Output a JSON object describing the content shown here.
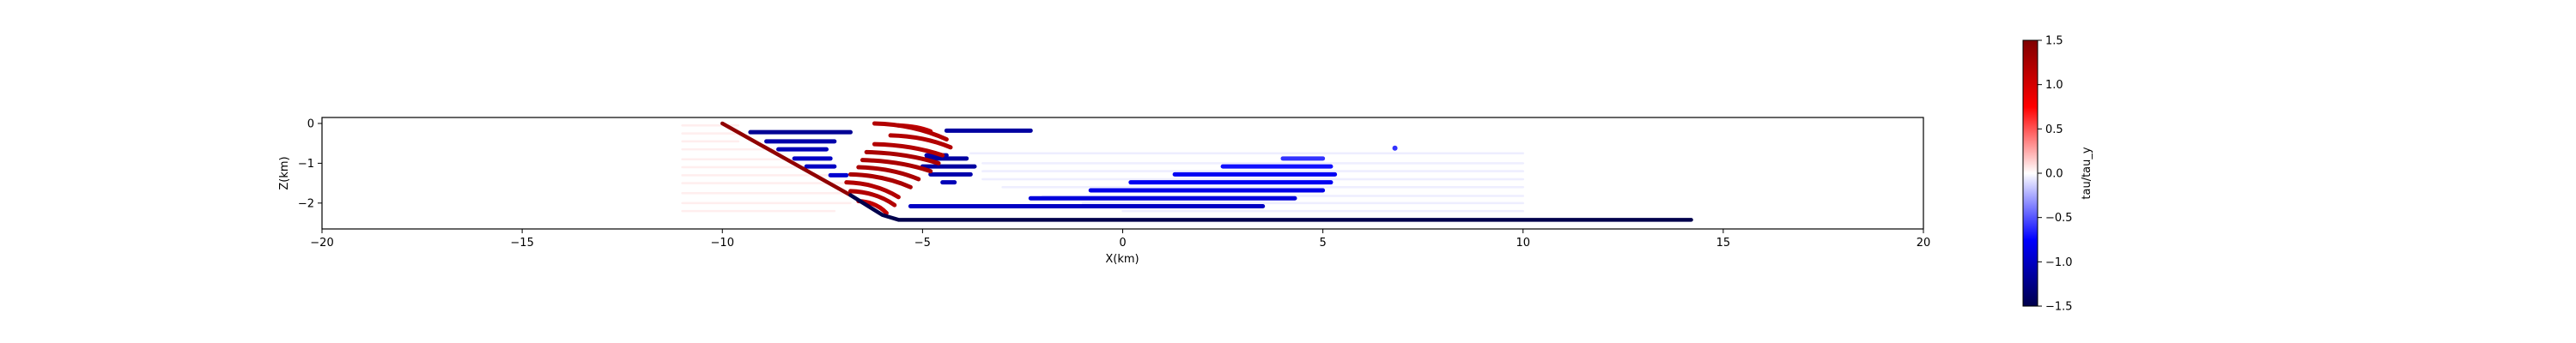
{
  "chart_data": {
    "type": "scatter",
    "title": "",
    "xlabel": "X(km)",
    "ylabel": "Z(km)",
    "xlim": [
      -20,
      20
    ],
    "ylim": [
      -2.65,
      0.15
    ],
    "xticks": [
      -20,
      -15,
      -10,
      -5,
      0,
      5,
      10,
      15,
      20
    ],
    "xtick_labels": [
      "−20",
      "−15",
      "−10",
      "−5",
      "0",
      "5",
      "10",
      "15",
      "20"
    ],
    "yticks": [
      0,
      -1,
      -2
    ],
    "ytick_labels": [
      "0",
      "−1",
      "−2"
    ],
    "grid": false,
    "colormap": "seismic",
    "colorbar": {
      "label": "tau/tau_y",
      "range": [
        -1.5,
        1.5
      ],
      "ticks": [
        1.5,
        1.0,
        0.5,
        0.0,
        -0.5,
        -1.0,
        -1.5
      ],
      "tick_labels": [
        "1.5",
        "1.0",
        "0.5",
        "0.0",
        "−0.5",
        "−1.0",
        "−1.5"
      ],
      "stops": [
        "#00004c",
        "#0000ff",
        "#ffffff",
        "#ff0000",
        "#7f0000"
      ]
    },
    "fault": {
      "points": [
        [
          -10.0,
          0.0
        ],
        [
          -6.8,
          -1.8
        ],
        [
          -6.0,
          -2.3
        ],
        [
          -5.6,
          -2.42
        ],
        [
          14.2,
          -2.42
        ]
      ],
      "value": -1.5,
      "ramp_value": 1.4
    },
    "faint_segments": [
      {
        "x": [
          -11.0,
          -9.6
        ],
        "z": -0.05,
        "value": 0.05
      },
      {
        "x": [
          -11.0,
          -9.6
        ],
        "z": -0.25,
        "value": 0.05
      },
      {
        "x": [
          -11.0,
          -9.6
        ],
        "z": -0.45,
        "value": 0.05
      },
      {
        "x": [
          -11.0,
          -8.5
        ],
        "z": -0.65,
        "value": 0.05
      },
      {
        "x": [
          -11.0,
          -8.0
        ],
        "z": -0.9,
        "value": 0.05
      },
      {
        "x": [
          -11.0,
          -7.5
        ],
        "z": -1.1,
        "value": 0.05
      },
      {
        "x": [
          -11.0,
          -7.0
        ],
        "z": -1.3,
        "value": 0.05
      },
      {
        "x": [
          -11.0,
          -6.5
        ],
        "z": -1.5,
        "value": 0.05
      },
      {
        "x": [
          -11.0,
          -6.5
        ],
        "z": -1.75,
        "value": 0.05
      },
      {
        "x": [
          -11.0,
          -6.8
        ],
        "z": -2.0,
        "value": 0.05
      },
      {
        "x": [
          -11.0,
          -7.2
        ],
        "z": -2.2,
        "value": 0.05
      },
      {
        "x": [
          -3.8,
          10.0
        ],
        "z": -0.75,
        "value": -0.05
      },
      {
        "x": [
          -3.5,
          10.0
        ],
        "z": -1.0,
        "value": -0.05
      },
      {
        "x": [
          -3.5,
          10.0
        ],
        "z": -1.2,
        "value": -0.05
      },
      {
        "x": [
          -3.5,
          10.0
        ],
        "z": -1.4,
        "value": -0.05
      },
      {
        "x": [
          -3.0,
          10.0
        ],
        "z": -1.6,
        "value": -0.05
      },
      {
        "x": [
          -2.0,
          10.0
        ],
        "z": -1.82,
        "value": -0.05
      },
      {
        "x": [
          -1.0,
          10.0
        ],
        "z": -2.0,
        "value": -0.05
      },
      {
        "x": [
          0.0,
          10.0
        ],
        "z": -2.2,
        "value": -0.05
      }
    ],
    "blue_segments": [
      {
        "x": [
          -9.3,
          -6.8
        ],
        "z": -0.22,
        "value": -1.2
      },
      {
        "x": [
          -8.9,
          -7.2
        ],
        "z": -0.45,
        "value": -1.1
      },
      {
        "x": [
          -8.6,
          -7.4
        ],
        "z": -0.65,
        "value": -1.05
      },
      {
        "x": [
          -8.2,
          -7.3
        ],
        "z": -0.88,
        "value": -1.0
      },
      {
        "x": [
          -7.9,
          -7.2
        ],
        "z": -1.08,
        "value": -1.0
      },
      {
        "x": [
          -7.3,
          -6.9
        ],
        "z": -1.3,
        "value": -0.95
      },
      {
        "x": [
          -4.4,
          -2.3
        ],
        "z": -0.18,
        "value": -1.15
      },
      {
        "x": [
          -4.9,
          -4.4
        ],
        "z": -0.8,
        "value": -1.1
      },
      {
        "x": [
          -4.9,
          -3.9
        ],
        "z": -0.88,
        "value": -1.15
      },
      {
        "x": [
          -5.0,
          -3.7
        ],
        "z": -1.08,
        "value": -1.15
      },
      {
        "x": [
          -4.8,
          -3.8
        ],
        "z": -1.28,
        "value": -1.1
      },
      {
        "x": [
          -4.5,
          -4.2
        ],
        "z": -1.48,
        "value": -1.05
      },
      {
        "x": [
          4.0,
          5.0
        ],
        "z": -0.88,
        "value": -0.6
      },
      {
        "x": [
          2.5,
          5.2
        ],
        "z": -1.08,
        "value": -0.7
      },
      {
        "x": [
          1.3,
          5.3
        ],
        "z": -1.28,
        "value": -0.8
      },
      {
        "x": [
          0.2,
          5.2
        ],
        "z": -1.48,
        "value": -0.8
      },
      {
        "x": [
          -0.8,
          5.0
        ],
        "z": -1.68,
        "value": -0.85
      },
      {
        "x": [
          -2.3,
          4.3
        ],
        "z": -1.88,
        "value": -0.9
      },
      {
        "x": [
          -5.3,
          3.5
        ],
        "z": -2.08,
        "value": -1.0
      }
    ],
    "red_segments": [
      {
        "x": [
          -5.6,
          -4.8
        ],
        "z": [
          -0.05,
          -0.2
        ],
        "value": 1.1
      },
      {
        "x": [
          -6.2,
          -4.4
        ],
        "z": [
          0.0,
          -0.4
        ],
        "value": 1.2
      },
      {
        "x": [
          -5.8,
          -4.3
        ],
        "z": [
          -0.3,
          -0.6
        ],
        "value": 1.2
      },
      {
        "x": [
          -6.2,
          -4.5
        ],
        "z": [
          -0.52,
          -0.8
        ],
        "value": 1.2
      },
      {
        "x": [
          -6.4,
          -4.6
        ],
        "z": [
          -0.72,
          -1.0
        ],
        "value": 1.25
      },
      {
        "x": [
          -6.5,
          -4.8
        ],
        "z": [
          -0.92,
          -1.2
        ],
        "value": 1.25
      },
      {
        "x": [
          -6.6,
          -5.1
        ],
        "z": [
          -1.1,
          -1.4
        ],
        "value": 1.25
      },
      {
        "x": [
          -6.8,
          -5.3
        ],
        "z": [
          -1.28,
          -1.6
        ],
        "value": 1.25
      },
      {
        "x": [
          -6.9,
          -5.6
        ],
        "z": [
          -1.48,
          -1.85
        ],
        "value": 1.2
      },
      {
        "x": [
          -6.8,
          -5.7
        ],
        "z": [
          -1.7,
          -2.05
        ],
        "value": 1.2
      },
      {
        "x": [
          -6.6,
          -5.9
        ],
        "z": [
          -1.95,
          -2.25
        ],
        "value": 1.1
      }
    ],
    "accent_points": [
      {
        "x": 6.8,
        "z": -0.62,
        "value": -0.6
      }
    ]
  }
}
